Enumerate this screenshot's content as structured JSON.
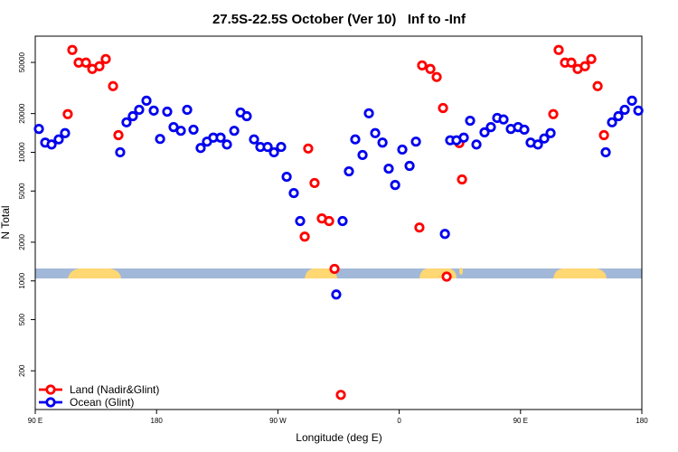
{
  "chart_data": {
    "type": "scatter",
    "title": "27.5S-22.5S October (Ver 10)   Inf to -Inf",
    "x_label": "Longitude (deg E)",
    "y_label": "N Total",
    "xlim": [
      90,
      540
    ],
    "xticks": [
      {
        "value": 90,
        "label": "90 E"
      },
      {
        "value": 180,
        "label": "180"
      },
      {
        "value": 270,
        "label": "90 W"
      },
      {
        "value": 360,
        "label": "0"
      },
      {
        "value": 450,
        "label": "90 E"
      },
      {
        "value": 540,
        "label": "180"
      }
    ],
    "ylim": [
      100,
      80000
    ],
    "yticks": [
      200,
      500,
      1000,
      2000,
      5000,
      10000,
      20000,
      50000
    ],
    "y_log": true,
    "legend": "bottom-left",
    "series": [
      {
        "name": "Land (Nadir&Glint)",
        "color": "#ff0000",
        "x": [
          114.1,
          117.5,
          122.2,
          127.6,
          132.3,
          137.6,
          142.3,
          147.7,
          151.7,
          292.5,
          297.2,
          289.9,
          302.6,
          308.0,
          312.0,
          316.7,
          375.0,
          377.0,
          383.1,
          387.8,
          392.5,
          395.2,
          404.6,
          406.6,
          474.3,
          478.3,
          483.0,
          487.7,
          492.4,
          497.8,
          502.5,
          507.2,
          511.9
        ],
        "values": [
          19800,
          62500,
          49800,
          49800,
          44500,
          46700,
          53100,
          32700,
          13600,
          10700,
          5770,
          2210,
          3060,
          2920,
          1240,
          130,
          2600,
          47400,
          44500,
          38500,
          22100,
          1080,
          11800,
          6150,
          19800,
          62500,
          49800,
          49800,
          44500,
          46700,
          53100,
          32700,
          13600
        ]
      },
      {
        "name": "Ocean (Glint)",
        "color": "#0000ee",
        "x": [
          92.7,
          97.4,
          102.1,
          107.4,
          112.1,
          153.0,
          157.7,
          162.4,
          167.1,
          172.5,
          177.9,
          182.6,
          187.9,
          192.6,
          198.0,
          202.7,
          207.4,
          212.7,
          217.4,
          222.1,
          227.5,
          232.2,
          237.6,
          242.3,
          246.9,
          252.3,
          257.0,
          262.4,
          267.1,
          272.4,
          276.5,
          281.8,
          286.5,
          318.0,
          313.3,
          322.7,
          327.4,
          332.8,
          337.5,
          342.2,
          347.6,
          352.2,
          357.0,
          362.3,
          367.7,
          372.4,
          393.9,
          397.8,
          402.5,
          407.9,
          412.6,
          417.3,
          423.3,
          428.0,
          432.7,
          437.4,
          442.8,
          448.2,
          452.8,
          457.5,
          462.9,
          467.6,
          472.3,
          513.2,
          517.9,
          522.6,
          527.3,
          532.7,
          537.4
        ],
        "values": [
          15200,
          11900,
          11500,
          12600,
          14100,
          10000,
          17100,
          19100,
          21400,
          25200,
          21100,
          12700,
          20700,
          15700,
          14700,
          21400,
          15000,
          10800,
          12100,
          13000,
          13000,
          11500,
          14700,
          20400,
          19100,
          12600,
          11000,
          11000,
          10000,
          11000,
          6450,
          4820,
          2920,
          2920,
          784,
          7110,
          12600,
          9530,
          20100,
          14100,
          11900,
          7460,
          5570,
          10500,
          7840,
          12100,
          2320,
          12400,
          12400,
          13000,
          17600,
          11500,
          14300,
          15700,
          18500,
          18000,
          15200,
          15700,
          15000,
          11900,
          11500,
          12800,
          14100,
          10000,
          17100,
          19100,
          21400,
          25200,
          21100
        ]
      }
    ]
  }
}
